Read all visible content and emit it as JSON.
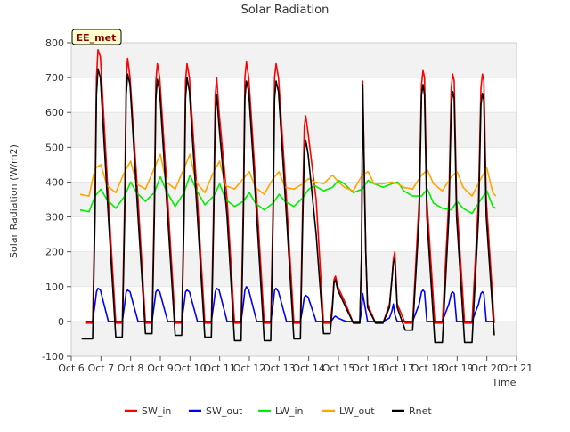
{
  "chart_data": {
    "type": "line",
    "title": "Solar Radiation",
    "xlabel": "Time",
    "ylabel": "Solar Radiation (W/m2)",
    "badge": "EE_met",
    "xlim": [
      6,
      21
    ],
    "ylim": [
      -100,
      800
    ],
    "x_ticks": [
      {
        "value": 6,
        "label": "Oct 6"
      },
      {
        "value": 7,
        "label": "Oct 7"
      },
      {
        "value": 8,
        "label": "Oct 8"
      },
      {
        "value": 9,
        "label": "Oct 9"
      },
      {
        "value": 10,
        "label": "Oct 10"
      },
      {
        "value": 11,
        "label": "Oct 11"
      },
      {
        "value": 12,
        "label": "Oct 12"
      },
      {
        "value": 13,
        "label": "Oct 13"
      },
      {
        "value": 14,
        "label": "Oct 14"
      },
      {
        "value": 15,
        "label": "Oct 15"
      },
      {
        "value": 16,
        "label": "Oct 16"
      },
      {
        "value": 17,
        "label": "Oct 17"
      },
      {
        "value": 18,
        "label": "Oct 18"
      },
      {
        "value": 19,
        "label": "Oct 19"
      },
      {
        "value": 20,
        "label": "Oct 20"
      },
      {
        "value": 21,
        "label": "Oct 21"
      }
    ],
    "y_ticks": [
      {
        "value": -100,
        "label": "-100"
      },
      {
        "value": 0,
        "label": "0"
      },
      {
        "value": 100,
        "label": "100"
      },
      {
        "value": 200,
        "label": "200"
      },
      {
        "value": 300,
        "label": "300"
      },
      {
        "value": 400,
        "label": "400"
      },
      {
        "value": 500,
        "label": "500"
      },
      {
        "value": 600,
        "label": "600"
      },
      {
        "value": 700,
        "label": "700"
      },
      {
        "value": 800,
        "label": "800"
      }
    ],
    "grid_bands": [
      [
        -100,
        0
      ],
      [
        100,
        200
      ],
      [
        300,
        400
      ],
      [
        500,
        600
      ],
      [
        700,
        800
      ]
    ],
    "legend_position": "bottom-center",
    "series": [
      {
        "name": "SW_in",
        "color": "#ff0000",
        "x": [
          6.5,
          6.72,
          6.8,
          6.85,
          6.9,
          6.98,
          7.25,
          7.5,
          7.72,
          7.8,
          7.85,
          7.9,
          7.98,
          8.25,
          8.5,
          8.72,
          8.8,
          8.85,
          8.9,
          8.98,
          9.25,
          9.5,
          9.72,
          9.8,
          9.85,
          9.9,
          9.98,
          10.25,
          10.5,
          10.72,
          10.8,
          10.85,
          10.9,
          10.98,
          11.25,
          11.5,
          11.72,
          11.8,
          11.85,
          11.9,
          11.98,
          12.25,
          12.5,
          12.72,
          12.8,
          12.85,
          12.9,
          12.98,
          13.25,
          13.5,
          13.72,
          13.8,
          13.85,
          13.9,
          13.98,
          14.25,
          14.5,
          14.72,
          14.8,
          14.85,
          14.9,
          14.98,
          15.25,
          15.5,
          15.72,
          15.78,
          15.82,
          15.88,
          15.92,
          15.98,
          16.25,
          16.5,
          16.72,
          16.8,
          16.85,
          16.9,
          16.98,
          17.25,
          17.5,
          17.72,
          17.8,
          17.85,
          17.9,
          17.98,
          18.25,
          18.5,
          18.72,
          18.8,
          18.85,
          18.9,
          18.98,
          19.25,
          19.5,
          19.72,
          19.8,
          19.85,
          19.9,
          19.98,
          20.25
        ],
        "y": [
          -5,
          -5,
          350,
          700,
          780,
          760,
          350,
          -5,
          -5,
          350,
          700,
          755,
          700,
          350,
          -5,
          -5,
          350,
          690,
          740,
          700,
          350,
          -5,
          -5,
          350,
          690,
          740,
          700,
          350,
          -5,
          -5,
          350,
          650,
          700,
          600,
          350,
          -5,
          -5,
          350,
          700,
          745,
          700,
          350,
          -5,
          -5,
          350,
          700,
          740,
          700,
          350,
          -5,
          -5,
          350,
          560,
          590,
          540,
          350,
          -5,
          -5,
          50,
          120,
          130,
          100,
          50,
          -5,
          -5,
          200,
          690,
          400,
          200,
          50,
          -5,
          -5,
          50,
          120,
          180,
          200,
          50,
          -5,
          -5,
          350,
          680,
          720,
          700,
          350,
          -5,
          -5,
          350,
          670,
          710,
          690,
          350,
          -5,
          -5,
          350,
          670,
          710,
          690,
          350,
          -5
        ]
      },
      {
        "name": "SW_out",
        "color": "#0000ff",
        "x": [
          6.5,
          6.72,
          6.8,
          6.85,
          6.9,
          6.98,
          7.25,
          7.5,
          7.72,
          7.8,
          7.85,
          7.9,
          7.98,
          8.25,
          8.5,
          8.72,
          8.8,
          8.85,
          8.9,
          8.98,
          9.25,
          9.5,
          9.72,
          9.8,
          9.85,
          9.9,
          9.98,
          10.25,
          10.5,
          10.72,
          10.8,
          10.85,
          10.9,
          10.98,
          11.25,
          11.5,
          11.72,
          11.8,
          11.85,
          11.9,
          11.98,
          12.25,
          12.5,
          12.72,
          12.8,
          12.85,
          12.9,
          12.98,
          13.25,
          13.5,
          13.72,
          13.8,
          13.85,
          13.9,
          13.98,
          14.25,
          14.5,
          14.72,
          14.8,
          14.85,
          14.9,
          14.98,
          15.25,
          15.5,
          15.72,
          15.78,
          15.82,
          15.88,
          15.92,
          15.98,
          16.25,
          16.5,
          16.72,
          16.8,
          16.85,
          16.9,
          16.98,
          17.25,
          17.5,
          17.72,
          17.8,
          17.85,
          17.9,
          17.98,
          18.25,
          18.5,
          18.72,
          18.8,
          18.85,
          18.9,
          18.98,
          19.25,
          19.5,
          19.72,
          19.8,
          19.85,
          19.9,
          19.98,
          20.25
        ],
        "y": [
          0,
          0,
          50,
          85,
          95,
          90,
          0,
          0,
          0,
          50,
          85,
          90,
          85,
          0,
          0,
          0,
          50,
          85,
          90,
          85,
          0,
          0,
          0,
          50,
          85,
          90,
          85,
          0,
          0,
          0,
          50,
          85,
          95,
          90,
          0,
          0,
          0,
          50,
          90,
          100,
          90,
          0,
          0,
          0,
          50,
          90,
          95,
          85,
          0,
          0,
          0,
          40,
          70,
          75,
          70,
          0,
          0,
          0,
          5,
          12,
          15,
          10,
          0,
          0,
          0,
          30,
          80,
          50,
          30,
          0,
          0,
          0,
          10,
          30,
          50,
          20,
          0,
          0,
          0,
          50,
          85,
          90,
          85,
          0,
          0,
          0,
          50,
          80,
          85,
          80,
          0,
          0,
          0,
          50,
          80,
          85,
          80,
          0,
          0
        ]
      },
      {
        "name": "LW_in",
        "color": "#00ee00",
        "x": [
          6.3,
          6.6,
          6.8,
          7.0,
          7.2,
          7.5,
          7.8,
          8.0,
          8.2,
          8.5,
          8.8,
          9.0,
          9.2,
          9.5,
          9.8,
          10.0,
          10.2,
          10.5,
          10.8,
          11.0,
          11.2,
          11.5,
          11.8,
          12.0,
          12.2,
          12.5,
          12.8,
          13.0,
          13.2,
          13.5,
          13.8,
          14.0,
          14.2,
          14.5,
          14.8,
          15.0,
          15.2,
          15.5,
          15.8,
          16.0,
          16.2,
          16.5,
          16.8,
          17.0,
          17.2,
          17.5,
          17.8,
          18.0,
          18.2,
          18.5,
          18.8,
          19.0,
          19.2,
          19.5,
          19.8,
          20.0,
          20.2,
          20.3
        ],
        "y": [
          320,
          315,
          360,
          380,
          350,
          325,
          360,
          400,
          370,
          345,
          370,
          415,
          375,
          330,
          370,
          420,
          380,
          335,
          360,
          395,
          350,
          330,
          345,
          370,
          340,
          320,
          340,
          365,
          345,
          330,
          355,
          380,
          390,
          375,
          385,
          405,
          395,
          370,
          380,
          405,
          395,
          385,
          395,
          400,
          375,
          360,
          360,
          380,
          340,
          325,
          320,
          345,
          325,
          310,
          350,
          375,
          330,
          325
        ]
      },
      {
        "name": "LW_out",
        "color": "#ffa500",
        "x": [
          6.3,
          6.6,
          6.8,
          7.0,
          7.2,
          7.5,
          7.8,
          8.0,
          8.2,
          8.5,
          8.8,
          9.0,
          9.2,
          9.5,
          9.8,
          10.0,
          10.2,
          10.5,
          10.8,
          11.0,
          11.2,
          11.5,
          11.8,
          12.0,
          12.2,
          12.5,
          12.8,
          13.0,
          13.2,
          13.5,
          13.8,
          14.0,
          14.2,
          14.5,
          14.8,
          15.0,
          15.2,
          15.5,
          15.8,
          16.0,
          16.2,
          16.5,
          16.8,
          17.0,
          17.2,
          17.5,
          17.8,
          18.0,
          18.2,
          18.5,
          18.8,
          19.0,
          19.2,
          19.5,
          19.8,
          20.0,
          20.2,
          20.3
        ],
        "y": [
          365,
          360,
          440,
          450,
          390,
          370,
          430,
          460,
          395,
          380,
          440,
          480,
          400,
          380,
          440,
          480,
          400,
          370,
          430,
          460,
          390,
          380,
          410,
          430,
          385,
          365,
          410,
          430,
          385,
          380,
          395,
          410,
          400,
          395,
          420,
          400,
          385,
          375,
          420,
          430,
          395,
          395,
          400,
          395,
          385,
          380,
          420,
          435,
          395,
          375,
          415,
          430,
          385,
          360,
          410,
          440,
          370,
          360
        ]
      },
      {
        "name": "Rnet",
        "color": "#000000",
        "x": [
          6.35,
          6.55,
          6.72,
          6.8,
          6.85,
          6.9,
          6.98,
          7.25,
          7.5,
          7.72,
          7.8,
          7.85,
          7.9,
          7.98,
          8.25,
          8.5,
          8.72,
          8.8,
          8.85,
          8.9,
          8.98,
          9.25,
          9.5,
          9.72,
          9.8,
          9.85,
          9.9,
          9.98,
          10.25,
          10.5,
          10.72,
          10.8,
          10.85,
          10.9,
          10.98,
          11.25,
          11.5,
          11.72,
          11.8,
          11.85,
          11.9,
          11.98,
          12.25,
          12.5,
          12.72,
          12.8,
          12.85,
          12.9,
          12.98,
          13.25,
          13.5,
          13.72,
          13.8,
          13.85,
          13.9,
          13.98,
          14.25,
          14.5,
          14.72,
          14.8,
          14.85,
          14.9,
          14.98,
          15.25,
          15.5,
          15.72,
          15.78,
          15.82,
          15.88,
          15.92,
          15.98,
          16.25,
          16.5,
          16.72,
          16.8,
          16.85,
          16.9,
          16.98,
          17.25,
          17.5,
          17.72,
          17.8,
          17.85,
          17.9,
          17.98,
          18.25,
          18.5,
          18.72,
          18.8,
          18.85,
          18.9,
          18.98,
          19.25,
          19.5,
          19.72,
          19.8,
          19.85,
          19.9,
          19.98,
          20.25
        ],
        "y": [
          -50,
          -50,
          -50,
          300,
          650,
          725,
          700,
          300,
          -45,
          -45,
          300,
          650,
          710,
          680,
          300,
          -35,
          -35,
          300,
          640,
          695,
          660,
          300,
          -40,
          -40,
          300,
          640,
          700,
          660,
          300,
          -45,
          -45,
          300,
          600,
          650,
          560,
          300,
          -55,
          -55,
          300,
          640,
          690,
          660,
          300,
          -55,
          -55,
          300,
          640,
          690,
          660,
          300,
          -50,
          -50,
          300,
          480,
          520,
          480,
          250,
          -35,
          -35,
          40,
          110,
          120,
          90,
          40,
          -5,
          -5,
          200,
          680,
          380,
          200,
          40,
          -5,
          -5,
          40,
          120,
          170,
          180,
          40,
          -25,
          -25,
          300,
          650,
          680,
          650,
          300,
          -60,
          -60,
          300,
          620,
          660,
          640,
          300,
          -60,
          -60,
          300,
          620,
          655,
          635,
          300,
          -40
        ]
      }
    ]
  }
}
